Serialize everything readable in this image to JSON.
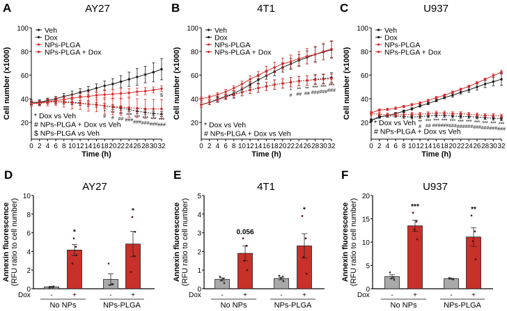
{
  "panels_text": {
    "A": {
      "label": "A",
      "title": "AY27"
    },
    "B": {
      "label": "B",
      "title": "4T1"
    },
    "C": {
      "label": "C",
      "title": "U937"
    },
    "D": {
      "label": "D",
      "title": "AY27"
    },
    "E": {
      "label": "E",
      "title": "4T1"
    },
    "F": {
      "label": "F",
      "title": "U937"
    }
  },
  "colors": {
    "black_series": "#1a1a1a",
    "red_series": "#d42a2a",
    "bar_gray": "#a9a9a9",
    "bar_red": "#c8302a"
  },
  "chart_data": [
    {
      "id": "A",
      "type": "line",
      "title": "AY27",
      "xlabel": "Time (h)",
      "ylabel": "Cell number (x1000)",
      "xlim": [
        0,
        32
      ],
      "ylim": [
        20,
        100
      ],
      "x_ticks": [
        0,
        2,
        4,
        6,
        8,
        10,
        12,
        14,
        16,
        18,
        20,
        22,
        24,
        26,
        28,
        30,
        32
      ],
      "y_ticks": [
        20,
        40,
        60,
        80,
        100
      ],
      "legend": {
        "position": "top-left",
        "entries": [
          "Veh",
          "Dox",
          "NPs-PLGA",
          "NPs-PLGA + Dox"
        ]
      },
      "x": [
        0,
        2,
        4,
        6,
        8,
        10,
        12,
        14,
        16,
        18,
        20,
        22,
        24,
        26,
        28,
        30,
        32
      ],
      "series": [
        {
          "name": "Veh",
          "color": "black",
          "style": "solid",
          "values": [
            37,
            37,
            38.5,
            40,
            42,
            43.5,
            45.5,
            47,
            49,
            51,
            52.5,
            54.5,
            56.5,
            58.5,
            60.5,
            62.5,
            65
          ],
          "errors": [
            2,
            2,
            2,
            2,
            2.5,
            3,
            3,
            3.5,
            3.5,
            4,
            4.5,
            5,
            6,
            7,
            7,
            8,
            9
          ]
        },
        {
          "name": "Dox",
          "color": "black",
          "style": "dotted",
          "values": [
            37,
            37,
            37.5,
            37.5,
            37.5,
            37,
            36.5,
            35.5,
            35,
            34,
            33,
            32,
            31,
            29.5,
            28.5,
            27.5,
            27
          ],
          "errors": [
            2,
            2,
            2,
            2,
            2,
            2,
            2,
            2,
            2,
            2,
            2,
            2,
            2,
            2,
            2,
            2,
            2
          ]
        },
        {
          "name": "NPs-PLGA",
          "color": "red",
          "style": "solid",
          "values": [
            36,
            36.5,
            37.5,
            38.5,
            39.5,
            40.5,
            41.5,
            42,
            43,
            43.5,
            44,
            44.5,
            45,
            46,
            46.5,
            47.5,
            48.5
          ],
          "errors": [
            2,
            2,
            2,
            2.5,
            2.5,
            3,
            3,
            3.5,
            4,
            4,
            4,
            4,
            3.5,
            3,
            3,
            2.5,
            2.5
          ]
        },
        {
          "name": "NPs-PLGA + Dox",
          "color": "red",
          "style": "dotted",
          "values": [
            36,
            36,
            37,
            37.5,
            37,
            36.5,
            36,
            35.5,
            35,
            34,
            33.5,
            33,
            32.5,
            32,
            31.5,
            31.5,
            31.5
          ],
          "errors": [
            2,
            2,
            3,
            3,
            4,
            5,
            5,
            6,
            6,
            7,
            7,
            7,
            8,
            8,
            8,
            8,
            8
          ]
        }
      ],
      "significance": {
        "x": [
          18,
          20,
          22,
          24,
          26,
          28,
          30,
          32
        ],
        "star": [
          "*",
          "**",
          "**",
          "***",
          "***",
          "***",
          "***",
          "***"
        ],
        "hash": [
          "#",
          "#",
          "##",
          "###",
          "###",
          "###",
          "###",
          "###"
        ],
        "dollar_at_32": "$"
      },
      "notes": [
        "* Dox vs Veh",
        "# NPs-PLGA + Dox vs Veh",
        "$ NPs-PLGA vs Veh"
      ]
    },
    {
      "id": "B",
      "type": "line",
      "title": "4T1",
      "xlabel": "Time (h)",
      "ylabel": "Cell number (x1000)",
      "xlim": [
        0,
        32
      ],
      "ylim": [
        20,
        100
      ],
      "x_ticks": [
        0,
        2,
        4,
        6,
        8,
        10,
        12,
        14,
        16,
        18,
        20,
        22,
        24,
        26,
        28,
        30,
        32
      ],
      "y_ticks": [
        20,
        40,
        60,
        80,
        100
      ],
      "legend": {
        "position": "top-left",
        "entries": [
          "Veh",
          "Dox",
          "NPs-PLGA",
          "NPs-PLGA + Dox"
        ]
      },
      "x": [
        0,
        2,
        4,
        6,
        8,
        10,
        12,
        14,
        16,
        18,
        20,
        22,
        24,
        26,
        28,
        30,
        32
      ],
      "series": [
        {
          "name": "Veh",
          "color": "black",
          "style": "solid",
          "values": [
            35,
            37,
            39.5,
            42,
            44.5,
            48,
            52,
            56,
            59.5,
            63,
            66.5,
            69.5,
            72.5,
            75,
            77.5,
            79.5,
            81.5
          ],
          "errors": [
            2,
            2,
            2,
            2,
            2,
            2,
            2.5,
            3,
            3,
            3.5,
            4,
            4.5,
            5,
            5.5,
            6,
            6.5,
            7
          ]
        },
        {
          "name": "Dox",
          "color": "black",
          "style": "dotted",
          "values": [
            35,
            37,
            39.5,
            42,
            44,
            45.5,
            47.5,
            49,
            50.5,
            52,
            53,
            54,
            55,
            55.5,
            56.5,
            57,
            58
          ],
          "errors": [
            2,
            2,
            2,
            2,
            3,
            3,
            3,
            3.5,
            3.5,
            4,
            4,
            4,
            4,
            4,
            4,
            4,
            4
          ]
        },
        {
          "name": "NPs-PLGA",
          "color": "red",
          "style": "solid",
          "values": [
            40,
            41.5,
            43.5,
            46,
            49,
            52.5,
            56.5,
            60,
            63.5,
            66.5,
            69.5,
            71.5,
            74,
            76,
            77.5,
            80,
            82
          ],
          "errors": [
            1.5,
            1.5,
            1.5,
            2,
            2,
            2.5,
            3,
            3,
            4,
            4.5,
            5,
            5.5,
            6,
            6.5,
            7,
            7,
            7
          ]
        },
        {
          "name": "NPs-PLGA + Dox",
          "color": "red",
          "style": "dotted",
          "values": [
            35,
            37,
            39,
            41.5,
            43.5,
            45.5,
            47.5,
            49,
            50.5,
            52,
            53,
            54,
            55,
            55.5,
            56,
            56.5,
            57
          ],
          "errors": [
            2,
            2,
            2,
            2,
            3,
            3,
            3,
            3.5,
            3.5,
            4,
            4,
            4,
            4,
            4,
            4,
            4,
            4
          ]
        }
      ],
      "significance": {
        "x": [
          22,
          24,
          26,
          28,
          30,
          32
        ],
        "star": [
          "*",
          "**",
          "**",
          "***",
          "***",
          "***"
        ],
        "hash": [
          "#",
          "##",
          "##",
          "###",
          "###",
          "###"
        ]
      },
      "notes": [
        "* Dox vs Veh",
        "# NPs-PLGA + Dox vs Veh"
      ]
    },
    {
      "id": "C",
      "type": "line",
      "title": "U937",
      "xlabel": "Time (h)",
      "ylabel": "Cell number (x1000)",
      "xlim": [
        0,
        32
      ],
      "ylim": [
        20,
        100
      ],
      "x_ticks": [
        0,
        2,
        4,
        6,
        8,
        10,
        12,
        14,
        16,
        18,
        20,
        22,
        24,
        26,
        28,
        30,
        32
      ],
      "y_ticks": [
        20,
        40,
        60,
        80,
        100
      ],
      "legend": {
        "position": "top-left",
        "entries": [
          "Veh",
          "Dox",
          "NPs-PLGA",
          "NPs-PLGA + Dox"
        ]
      },
      "x": [
        0,
        2,
        4,
        6,
        8,
        10,
        12,
        14,
        16,
        18,
        20,
        22,
        24,
        26,
        28,
        30,
        32
      ],
      "series": [
        {
          "name": "Veh",
          "color": "black",
          "style": "solid",
          "values": [
            21.5,
            24.5,
            26,
            27.5,
            29.5,
            31.5,
            34,
            36,
            38.5,
            41,
            43,
            45.5,
            47.5,
            50,
            52.5,
            54.5,
            56.5
          ],
          "errors": [
            1,
            1,
            1,
            1,
            1,
            1,
            1,
            1,
            1,
            1,
            1.5,
            1.5,
            2,
            2.5,
            3,
            3.5,
            5
          ]
        },
        {
          "name": "Dox",
          "color": "black",
          "style": "dotted",
          "values": [
            22,
            25,
            25.5,
            25.5,
            25,
            24.5,
            25,
            25.5,
            26,
            26,
            25.5,
            25,
            25,
            24.5,
            24,
            23.5,
            23
          ],
          "errors": [
            1,
            1,
            1,
            1,
            1.5,
            1.5,
            1.5,
            1.5,
            1.5,
            1.5,
            1.5,
            1.5,
            1.5,
            1.5,
            1.5,
            1.5,
            1.5
          ]
        },
        {
          "name": "NPs-PLGA",
          "color": "red",
          "style": "solid",
          "values": [
            28,
            30.5,
            31,
            32,
            33.5,
            35,
            36.5,
            38.5,
            41,
            43,
            45.5,
            48,
            50.5,
            53.5,
            56.5,
            59.5,
            62.5
          ],
          "errors": [
            1,
            1,
            1,
            1,
            1,
            1,
            1,
            1,
            1,
            1,
            1,
            1,
            1,
            1,
            1,
            1.5,
            1.5
          ]
        },
        {
          "name": "NPs-PLGA + Dox",
          "color": "red",
          "style": "dotted",
          "values": [
            27.5,
            27,
            26.5,
            26.5,
            26.5,
            27,
            27,
            27.5,
            28,
            28,
            27.5,
            27.5,
            27,
            26.5,
            26,
            26,
            25.5
          ],
          "errors": [
            1.5,
            1.5,
            1.5,
            1.5,
            1.5,
            1.5,
            1.5,
            1.5,
            1.5,
            1.5,
            1.5,
            1.5,
            1.5,
            1.5,
            1.5,
            1.5,
            1.5
          ]
        }
      ],
      "significance": {
        "x": [
          12,
          14,
          16,
          18,
          20,
          22,
          24,
          26,
          28,
          30,
          32
        ],
        "star": [
          "**",
          "***",
          "***",
          "***",
          "***",
          "***",
          "***",
          "***",
          "***",
          "***",
          "***"
        ],
        "hash": [
          "#",
          "##",
          "###",
          "###",
          "###",
          "###",
          "###",
          "###",
          "###",
          "###",
          "###"
        ]
      },
      "notes": [
        "* Dox vs Veh",
        "# NPs-PLGA + Dox vs Veh"
      ]
    },
    {
      "id": "D",
      "type": "bar",
      "title": "AY27",
      "ylabel": "Annexin fluorescence",
      "ylabel2": "(RFU ratio to cell number)",
      "ylim": [
        0,
        10
      ],
      "y_ticks": [
        0,
        2,
        4,
        6,
        8,
        10
      ],
      "row_label": "Dox",
      "groups": [
        "No NPs",
        "NPs-PLGA"
      ],
      "bars": [
        {
          "group": "No NPs",
          "dox": "-",
          "value": 0.2,
          "sem": 0.05,
          "color": "gray",
          "points": [
            0.1,
            0.15,
            0.2,
            0.25
          ],
          "annotation": ""
        },
        {
          "group": "No NPs",
          "dox": "+",
          "value": 4.15,
          "sem": 0.6,
          "color": "red",
          "points": [
            2.7,
            4.5,
            5.4,
            3.6
          ],
          "annotation": "*"
        },
        {
          "group": "NPs-PLGA",
          "dox": "-",
          "value": 1.0,
          "sem": 0.6,
          "color": "gray",
          "points": [
            2.7,
            0.5,
            0.4,
            0.5
          ],
          "annotation": ""
        },
        {
          "group": "NPs-PLGA",
          "dox": "+",
          "value": 4.8,
          "sem": 1.35,
          "color": "red",
          "points": [
            1.8,
            3.5,
            7.7,
            6.1
          ],
          "annotation": "*"
        }
      ]
    },
    {
      "id": "E",
      "type": "bar",
      "title": "4T1",
      "ylabel": "Annexin fluorescence",
      "ylabel2": "(RFU ratio to cell number)",
      "ylim": [
        0,
        5
      ],
      "y_ticks": [
        0,
        1,
        2,
        3,
        4,
        5
      ],
      "row_label": "Dox",
      "groups": [
        "No NPs",
        "NPs-PLGA"
      ],
      "bars": [
        {
          "group": "No NPs",
          "dox": "-",
          "value": 0.5,
          "sem": 0.08,
          "color": "gray",
          "points": [
            0.65,
            0.55,
            0.45,
            0.3
          ],
          "annotation": ""
        },
        {
          "group": "No NPs",
          "dox": "+",
          "value": 1.9,
          "sem": 0.4,
          "color": "red",
          "points": [
            2.7,
            2.3,
            1.5,
            1.0
          ],
          "annotation": "0.056"
        },
        {
          "group": "NPs-PLGA",
          "dox": "-",
          "value": 0.55,
          "sem": 0.07,
          "color": "gray",
          "points": [
            0.7,
            0.65,
            0.55,
            0.4
          ],
          "annotation": ""
        },
        {
          "group": "NPs-PLGA",
          "dox": "+",
          "value": 2.3,
          "sem": 0.65,
          "color": "red",
          "points": [
            3.9,
            2.7,
            1.7,
            0.8
          ],
          "annotation": "*"
        }
      ]
    },
    {
      "id": "F",
      "type": "bar",
      "title": "U937",
      "ylabel": "Annexin fluorescence",
      "ylabel2": "(RFU ratio to cell number)",
      "ylim": [
        0,
        20
      ],
      "y_ticks": [
        0,
        5,
        10,
        15,
        20
      ],
      "row_label": "Dox",
      "groups": [
        "No NPs",
        "NPs-PLGA"
      ],
      "bars": [
        {
          "group": "No NPs",
          "dox": "-",
          "value": 2.6,
          "sem": 0.4,
          "color": "gray",
          "points": [
            3.5,
            2.5,
            2.2,
            1.9
          ],
          "annotation": ""
        },
        {
          "group": "No NPs",
          "dox": "+",
          "value": 13.5,
          "sem": 1.2,
          "color": "red",
          "points": [
            16.3,
            14.4,
            12.7,
            10.6
          ],
          "annotation": "***"
        },
        {
          "group": "NPs-PLGA",
          "dox": "-",
          "value": 2.15,
          "sem": 0.1,
          "color": "gray",
          "points": [
            2.3,
            2.1,
            2.2,
            2.0
          ],
          "annotation": ""
        },
        {
          "group": "NPs-PLGA",
          "dox": "+",
          "value": 11.1,
          "sem": 2.0,
          "color": "red",
          "points": [
            15.7,
            12.3,
            10.2,
            6.3
          ],
          "annotation": "**"
        }
      ]
    }
  ]
}
